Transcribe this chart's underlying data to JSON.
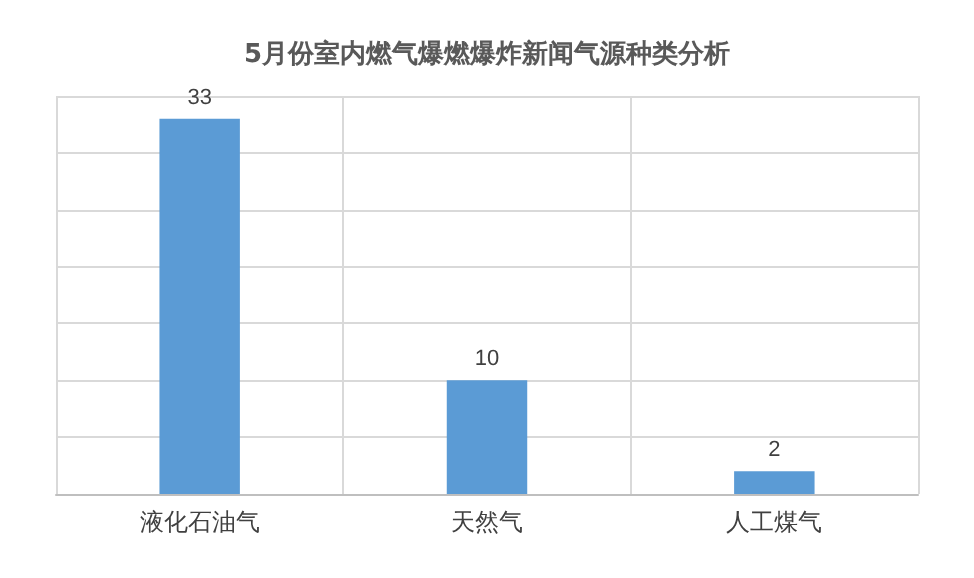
{
  "chart_data": {
    "type": "bar",
    "title": "5月份室内燃气爆燃爆炸新闻气源种类分析",
    "categories": [
      "液化石油气",
      "天然气",
      "人工煤气"
    ],
    "values": [
      33,
      10,
      2
    ],
    "color": "#5b9bd5",
    "data_labels": true,
    "grid": true
  }
}
